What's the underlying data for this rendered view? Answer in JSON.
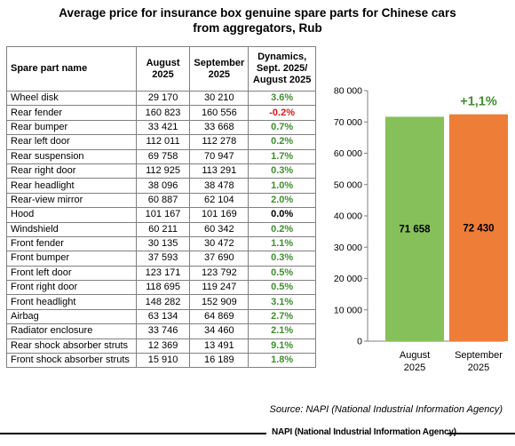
{
  "title_line1": "Average price for insurance box genuine spare parts for Chinese cars",
  "title_line2": "from aggregators, Rub",
  "table": {
    "headers": {
      "name": "Spare part name",
      "aug": [
        "August",
        "2025"
      ],
      "sep": [
        "September",
        "2025"
      ],
      "dyn": [
        "Dynamics,",
        "Sept. 2025/",
        "August 2025"
      ]
    },
    "rows": [
      {
        "name": "Wheel disk",
        "aug": "29 170",
        "sep": "30 210",
        "dyn": "3.6%",
        "color": "#3f8f2f"
      },
      {
        "name": "Rear fender",
        "aug": "160 823",
        "sep": "160 556",
        "dyn": "-0.2%",
        "color": "#e0151b"
      },
      {
        "name": "Rear bumper",
        "aug": "33 421",
        "sep": "33 668",
        "dyn": "0.7%",
        "color": "#3f8f2f"
      },
      {
        "name": "Rear left door",
        "aug": "112 011",
        "sep": "112 278",
        "dyn": "0.2%",
        "color": "#3f8f2f"
      },
      {
        "name": "Rear suspension",
        "aug": "69 758",
        "sep": "70 947",
        "dyn": "1.7%",
        "color": "#3f8f2f"
      },
      {
        "name": "Rear right door",
        "aug": "112 925",
        "sep": "113 291",
        "dyn": "0.3%",
        "color": "#3f8f2f"
      },
      {
        "name": "Rear headlight",
        "aug": "38 096",
        "sep": "38 478",
        "dyn": "1.0%",
        "color": "#3f8f2f"
      },
      {
        "name": "Rear-view mirror",
        "aug": "60 887",
        "sep": "62 104",
        "dyn": "2.0%",
        "color": "#3f8f2f"
      },
      {
        "name": "Hood",
        "aug": "101 167",
        "sep": "101 169",
        "dyn": "0.0%",
        "color": "#000000"
      },
      {
        "name": "Windshield",
        "aug": "60 211",
        "sep": "60 342",
        "dyn": "0.2%",
        "color": "#3f8f2f"
      },
      {
        "name": "Front fender",
        "aug": "30 135",
        "sep": "30 472",
        "dyn": "1.1%",
        "color": "#3f8f2f"
      },
      {
        "name": "Front bumper",
        "aug": "37 593",
        "sep": "37 690",
        "dyn": "0.3%",
        "color": "#3f8f2f"
      },
      {
        "name": "Front left door",
        "aug": "123 171",
        "sep": "123 792",
        "dyn": "0.5%",
        "color": "#3f8f2f"
      },
      {
        "name": "Front right door",
        "aug": "118 695",
        "sep": "119 247",
        "dyn": "0.5%",
        "color": "#3f8f2f"
      },
      {
        "name": "Front headlight",
        "aug": "148 282",
        "sep": "152 909",
        "dyn": "3.1%",
        "color": "#3f8f2f"
      },
      {
        "name": "Airbag",
        "aug": "63 134",
        "sep": "64 869",
        "dyn": "2.7%",
        "color": "#3f8f2f"
      },
      {
        "name": "Radiator enclosure",
        "aug": "33 746",
        "sep": "34 460",
        "dyn": "2.1%",
        "color": "#3f8f2f"
      },
      {
        "name": "Rear shock absorber struts",
        "aug": "12 369",
        "sep": "13 491",
        "dyn": "9.1%",
        "color": "#3f8f2f"
      },
      {
        "name": "Front shock absorber struts",
        "aug": "15 910",
        "sep": "16 189",
        "dyn": "1.8%",
        "color": "#3f8f2f"
      }
    ]
  },
  "chart_data": {
    "type": "bar",
    "categories": [
      [
        "August",
        "2025"
      ],
      [
        "September",
        "2025"
      ]
    ],
    "values": [
      71658,
      72430
    ],
    "value_labels": [
      "71 658",
      "72 430"
    ],
    "bar_colors": [
      "#86c05a",
      "#ee7d37"
    ],
    "ylim": [
      0,
      80000
    ],
    "yticks": [
      0,
      10000,
      20000,
      30000,
      40000,
      50000,
      60000,
      70000,
      80000
    ],
    "ytick_labels": [
      "0",
      "10 000",
      "20 000",
      "30 000",
      "40 000",
      "50 000",
      "60 000",
      "70 000",
      "80 000"
    ],
    "annotation": "+1,1%",
    "annotation_color": "#3f8f2f",
    "grid": false,
    "legend": "none"
  },
  "source": "Source: NAPI (National Industrial Information Agency)",
  "footer": "NAPI (National Industrial Information Agency)"
}
